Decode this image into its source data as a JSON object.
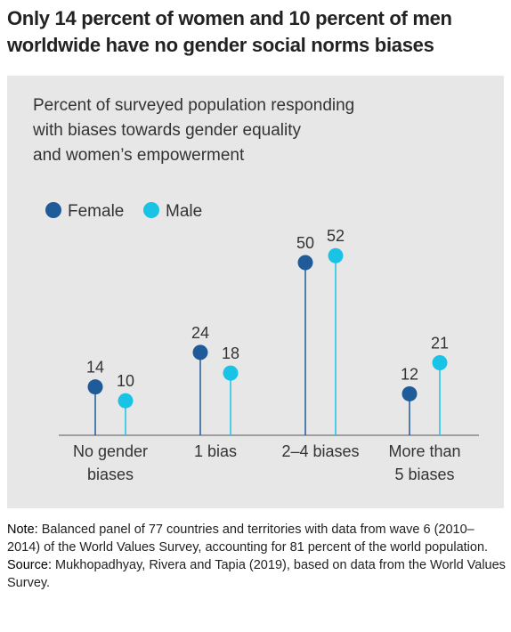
{
  "chart_data": {
    "type": "lollipop",
    "title": "Only 14 percent of women and 10 percent of men worldwide have no gender social norms biases",
    "subtitle": [
      "Percent of surveyed population responding",
      "with biases towards gender equality",
      "and women’s empowerment"
    ],
    "categories": [
      "No gender biases",
      "1 bias",
      "2–4 biases",
      "More than 5 biases"
    ],
    "series": [
      {
        "name": "Female",
        "color": "#1f5b98",
        "values": [
          14,
          24,
          50,
          12
        ]
      },
      {
        "name": "Male",
        "color": "#19c3e6",
        "values": [
          10,
          18,
          52,
          21
        ]
      }
    ],
    "note": {
      "label": "Note:",
      "text": "Balanced panel of 77 countries and territories with data from wave 6 (2010–2014) of the World Values Survey, accounting for 81 percent of the world population."
    },
    "source": {
      "label": "Source:",
      "text": "Mukhopadhyay, Rivera and Tapia (2019), based on data from the World Values Survey."
    }
  }
}
